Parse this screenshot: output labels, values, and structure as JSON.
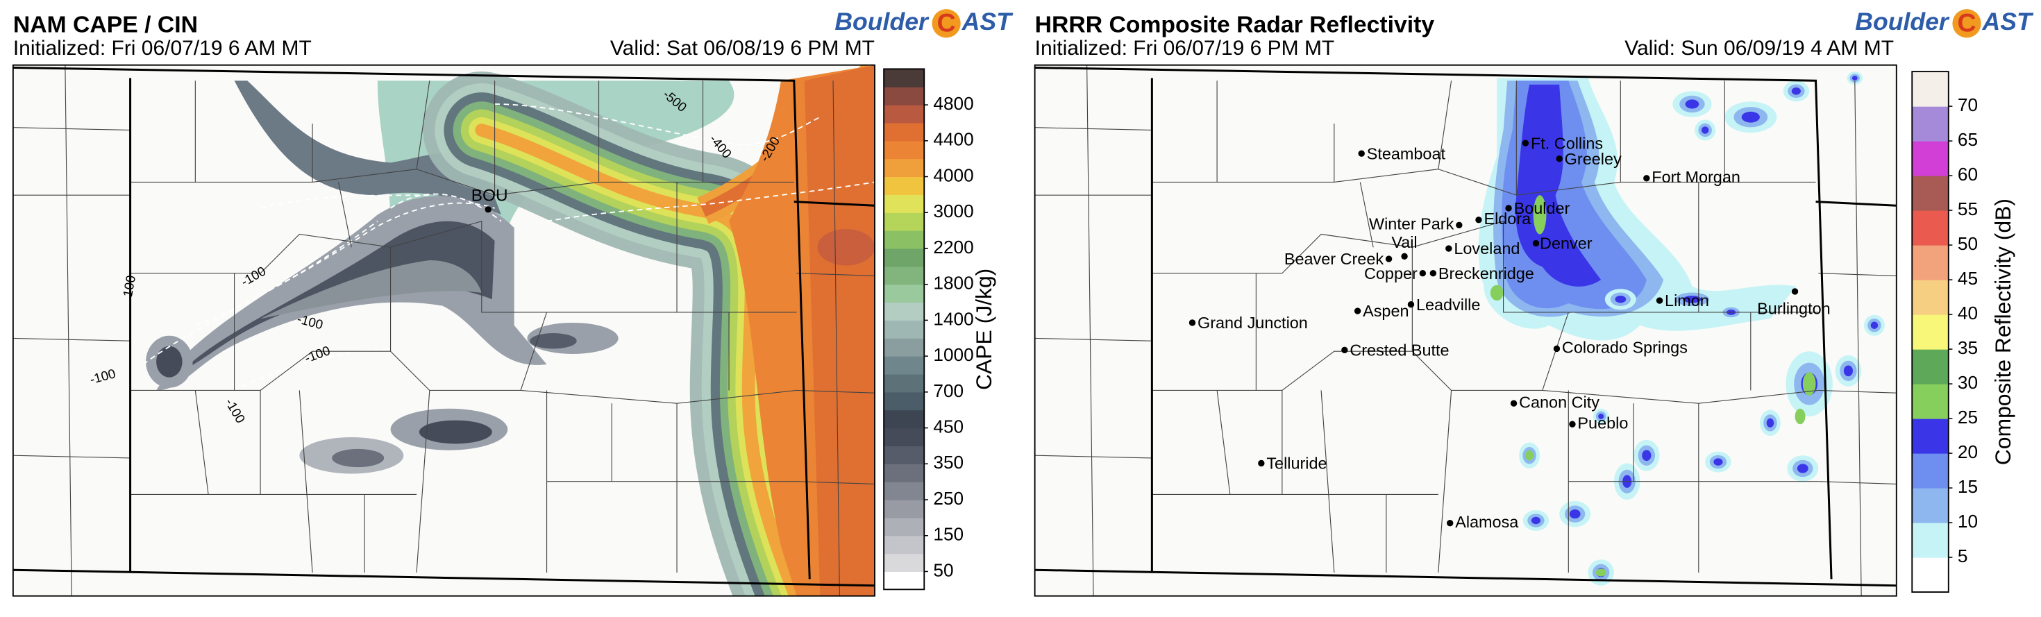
{
  "left_panel": {
    "title": "NAM CAPE / CIN",
    "initialized": "Initialized: Fri 06/07/19 6 AM MT",
    "valid": "Valid: Sat 06/08/19 6 PM MT",
    "logo": {
      "left": "Boulder",
      "mark": "C",
      "right": "AST"
    },
    "station": "BOU",
    "contour_labels": [
      "-100",
      "-100",
      "-100",
      "-100",
      "-100",
      "100",
      "-500",
      "-400",
      "-200"
    ],
    "colorbar": {
      "label": "CAPE (J/kg)",
      "ticks": [
        50,
        150,
        250,
        350,
        450,
        700,
        1000,
        1400,
        1800,
        2200,
        3000,
        4000,
        4400,
        4800
      ]
    }
  },
  "right_panel": {
    "title": "HRRR Composite Radar Reflectivity",
    "initialized": "Initialized: Fri 06/07/19 6 PM MT",
    "valid": "Valid: Sun 06/09/19 4 AM MT",
    "logo": {
      "left": "Boulder",
      "mark": "C",
      "right": "AST"
    },
    "cities": [
      "Steamboat",
      "Ft. Collins",
      "Greeley",
      "Fort Morgan",
      "Boulder",
      "Winter Park",
      "Eldora",
      "Denver",
      "Vail",
      "Loveland",
      "Beaver Creek",
      "Copper",
      "Breckenridge",
      "Leadville",
      "Aspen",
      "Grand Junction",
      "Crested Butte",
      "Colorado Springs",
      "Canon City",
      "Pueblo",
      "Telluride",
      "Alamosa",
      "Limon",
      "Burlington"
    ],
    "colorbar": {
      "label": "Composite Reflectivity (dB)",
      "ticks": [
        5,
        10,
        15,
        20,
        25,
        30,
        35,
        40,
        45,
        50,
        55,
        60,
        65,
        70
      ]
    }
  }
}
